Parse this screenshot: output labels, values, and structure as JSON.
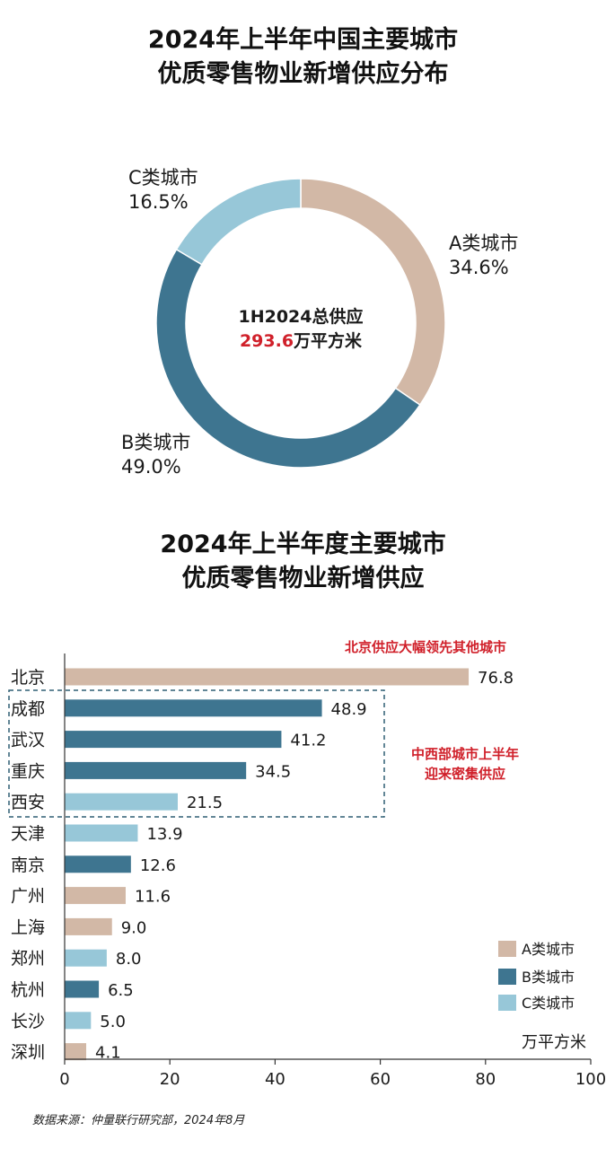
{
  "donut": {
    "title_line1": "2024年上半年中国主要城市",
    "title_line2": "优质零售物业新增供应分布",
    "center_label": "1H2024总供应",
    "center_value": "293.6",
    "center_unit": "万平方米"
  },
  "bars": {
    "title_line1": "2024年上半年度主要城市",
    "title_line2": "优质零售物业新增供应",
    "annotation_top": "北京供应大幅领先其他城市",
    "annotation_mid_line1": "中西部城市上半年",
    "annotation_mid_line2": "迎来密集供应",
    "unit": "万平方米"
  },
  "source": "数据来源：仲量联行研究部，2024年8月",
  "colors": {
    "A": "#d2b8a6",
    "B": "#3e7590",
    "C": "#97c7d8",
    "highlight": "#d0202a",
    "box": "#2e5f73"
  },
  "chart_data": [
    {
      "type": "pie",
      "donut": true,
      "title": "2024年上半年中国主要城市优质零售物业新增供应分布",
      "slices": [
        {
          "label": "A类城市",
          "value": 34.6,
          "value_label": "34.6%",
          "color": "#d2b8a6"
        },
        {
          "label": "B类城市",
          "value": 49.0,
          "value_label": "49.0%",
          "color": "#3e7590"
        },
        {
          "label": "C类城市",
          "value": 16.5,
          "value_label": "16.5%",
          "color": "#97c7d8"
        }
      ]
    },
    {
      "type": "bar",
      "orientation": "horizontal",
      "title": "2024年上半年度主要城市优质零售物业新增供应",
      "categories": [
        "北京",
        "成都",
        "武汉",
        "重庆",
        "西安",
        "天津",
        "南京",
        "广州",
        "上海",
        "郑州",
        "杭州",
        "长沙",
        "深圳"
      ],
      "values": [
        76.8,
        48.9,
        41.2,
        34.5,
        21.5,
        13.9,
        12.6,
        11.6,
        9.0,
        8.0,
        6.5,
        5.0,
        4.1
      ],
      "value_labels": [
        "76.8",
        "48.9",
        "41.2",
        "34.5",
        "21.5",
        "13.9",
        "12.6",
        "11.6",
        "9.0",
        "8.0",
        "6.5",
        "5.0",
        "4.1"
      ],
      "classes": [
        "A",
        "B",
        "B",
        "B",
        "C",
        "C",
        "B",
        "A",
        "A",
        "C",
        "B",
        "C",
        "A"
      ],
      "xlim": [
        0,
        100
      ],
      "xticks": [
        "0",
        "20",
        "40",
        "60",
        "80",
        "100"
      ],
      "xlabel": "万平方米",
      "legend": [
        {
          "key": "A",
          "label": "A类城市"
        },
        {
          "key": "B",
          "label": "B类城市"
        },
        {
          "key": "C",
          "label": "C类城市"
        }
      ],
      "legend_position": "bottom-right",
      "grid": false
    }
  ]
}
